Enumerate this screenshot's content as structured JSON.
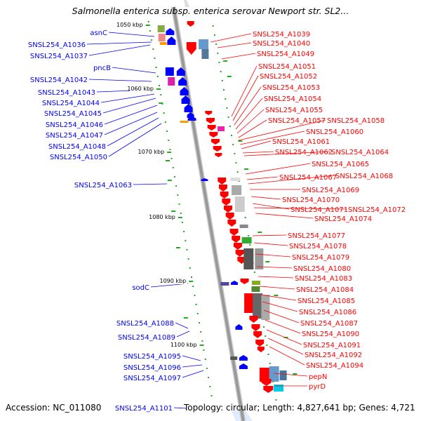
{
  "title": "Salmonella enterica subsp. enterica serovar Newport str. SL2...",
  "footer": {
    "accession": "Accession: NC_011080",
    "stats": "Topology: circular; Length: 4,827,641 bp; Genes: 4,721"
  },
  "colors": {
    "forward": "#0000ff",
    "reverse": "#ff0000",
    "backbone": "#999999",
    "tick": "#22aa22"
  },
  "tick_labels": [
    "1050 kbp",
    "1060 kbp",
    "1070 kbp",
    "1080 kbp",
    "1090 kbp",
    "1100 kbp"
  ],
  "left_labels": [
    "asnC",
    "SNSL254_A1036",
    "SNSL254_A1037",
    "pncB",
    "SNSL254_A1042",
    "SNSL254_A1043",
    "SNSL254_A1044",
    "SNSL254_A1045",
    "SNSL254_A1046",
    "SNSL254_A1047",
    "SNSL254_A1048",
    "SNSL254_A1050",
    "SNSL254_A1063",
    "sodC",
    "SNSL254_A1088",
    "SNSL254_A1089",
    "SNSL254_A1095",
    "SNSL254_A1096",
    "SNSL254_A1097",
    "SNSL254_A1101"
  ],
  "right_labels": [
    "SNSL254_A1039",
    "SNSL254_A1040",
    "SNSL254_A1049",
    "SNSL254_A1051",
    "SNSL254_A1052",
    "SNSL254_A1053",
    "SNSL254_A1054",
    "SNSL254_A1055",
    "SNSL254_A1057",
    "SNSL254_A1058",
    "SNSL254_A1060",
    "SNSL254_A1061",
    "SNSL254_A1062",
    "SNSL254_A1064",
    "SNSL254_A1065",
    "SNSL254_A1067",
    "SNSL254_A1068",
    "SNSL254_A1069",
    "SNSL254_A1070",
    "SNSL254_A1071",
    "SNSL254_A1072",
    "SNSL254_A1074",
    "SNSL254_A1077",
    "SNSL254_A1078",
    "SNSL254_A1079",
    "SNSL254_A1080",
    "SNSL254_A1083",
    "SNSL254_A1084",
    "SNSL254_A1085",
    "SNSL254_A1086",
    "SNSL254_A1087",
    "SNSL254_A1090",
    "SNSL254_A1091",
    "SNSL254_A1092",
    "SNSL254_A1094",
    "pepN",
    "pyrD"
  ]
}
